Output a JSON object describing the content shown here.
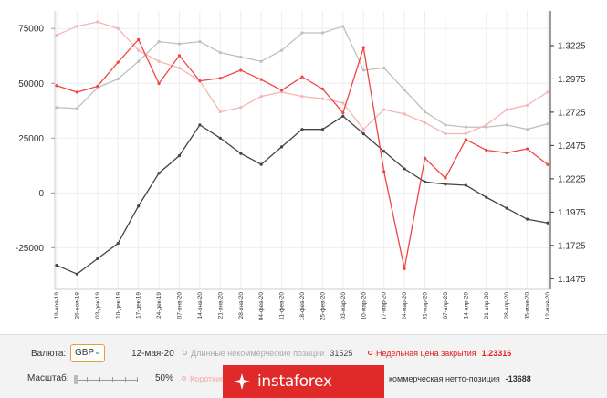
{
  "chart_data": {
    "type": "line",
    "x": [
      "19-ноя-19",
      "26-ноя-19",
      "03-дек-19",
      "10-дек-19",
      "17-дек-19",
      "24-дек-19",
      "07-янв-20",
      "14-янв-20",
      "21-янв-20",
      "28-янв-20",
      "04-фев-20",
      "11-фев-20",
      "18-фев-20",
      "25-фев-20",
      "03-мар-20",
      "10-мар-20",
      "17-мар-20",
      "24-мар-20",
      "31-мар-20",
      "07-апр-20",
      "14-апр-20",
      "21-апр-20",
      "28-апр-20",
      "05-мая-20",
      "12-мая-20"
    ],
    "x_label_texts": [
      "19-ноя-19",
      "26-ноя-19",
      "03-дек-19",
      "10-дек-19",
      "17-дек-19",
      "24-дек-19",
      "07-янв-20",
      "14-янв-20",
      "21-янв-20",
      "28-янв-20",
      "04-фев-20",
      "11-фев-20",
      "18-фев-20",
      "25-фев-20",
      "03-мар-20",
      "10-мар-20",
      "17-мар-20",
      "24-мар-20",
      "31-мар-20",
      "07-апр-20",
      "14-апр-20",
      "21-апр-20",
      "28-апр-20",
      "05-мая-20",
      "12-мая-20"
    ],
    "y_left": {
      "ticks": [
        -25000,
        0,
        25000,
        50000,
        75000
      ],
      "tick_labels": [
        "-25000",
        "0",
        "25000",
        "50000",
        "75000"
      ],
      "range": [
        -44000,
        83000
      ]
    },
    "y_right": {
      "ticks": [
        1.1475,
        1.1725,
        1.1975,
        1.2225,
        1.2475,
        1.2725,
        1.2975,
        1.3225
      ],
      "tick_labels": [
        "1.1475",
        "1.1725",
        "1.1975",
        "1.2225",
        "1.2475",
        "1.2725",
        "1.2975",
        "1.3225"
      ],
      "range": [
        1.1395,
        1.3485
      ]
    },
    "series": [
      {
        "axis": "left",
        "color": "#c0c0c0",
        "values": [
          39000,
          38500,
          48000,
          52000,
          60000,
          69000,
          68000,
          69000,
          64000,
          62000,
          60000,
          65000,
          73000,
          73000,
          76000,
          56000,
          57000,
          47000,
          37000,
          31000,
          30000,
          30000,
          31000,
          29000,
          31500
        ]
      },
      {
        "axis": "left",
        "color": "#f5b5b5",
        "values": [
          72000,
          76000,
          78000,
          75000,
          65000,
          60000,
          57000,
          51000,
          37000,
          39000,
          44000,
          46000,
          44000,
          43000,
          41000,
          29000,
          38000,
          36000,
          32000,
          27000,
          27000,
          31000,
          38000,
          40000,
          46000
        ]
      },
      {
        "axis": "left",
        "color": "#444444",
        "values": [
          -33000,
          -37000,
          -30000,
          -23000,
          -6000,
          9000,
          17000,
          31000,
          25000,
          18000,
          13000,
          21000,
          29000,
          29000,
          35000,
          27000,
          19000,
          11000,
          5000,
          4000,
          3500,
          -2000,
          -7000,
          -12000,
          -13688
        ]
      },
      {
        "axis": "right",
        "color": "#f04545",
        "values": [
          1.2925,
          1.2875,
          1.292,
          1.31,
          1.327,
          1.294,
          1.315,
          1.296,
          1.298,
          1.304,
          1.297,
          1.289,
          1.299,
          1.29,
          1.272,
          1.321,
          1.228,
          1.155,
          1.238,
          1.223,
          1.252,
          1.244,
          1.242,
          1.245,
          1.2332
        ]
      }
    ]
  },
  "controls": {
    "currency_label": "Валюта:",
    "currency_value": "GBP",
    "date": "12-мая-20",
    "long_label": "Длинные некоммерческие позиции",
    "long_value": "31525",
    "price_label": "Недельная цена закрытия",
    "price_value": "1.23316",
    "scale_label": "Масштаб:",
    "scale_value": "50%",
    "short_label": "Короткие",
    "net_label": "коммерческая нетто-позиция",
    "net_value": "-13688"
  },
  "watermark": {
    "text": "instaforex"
  }
}
